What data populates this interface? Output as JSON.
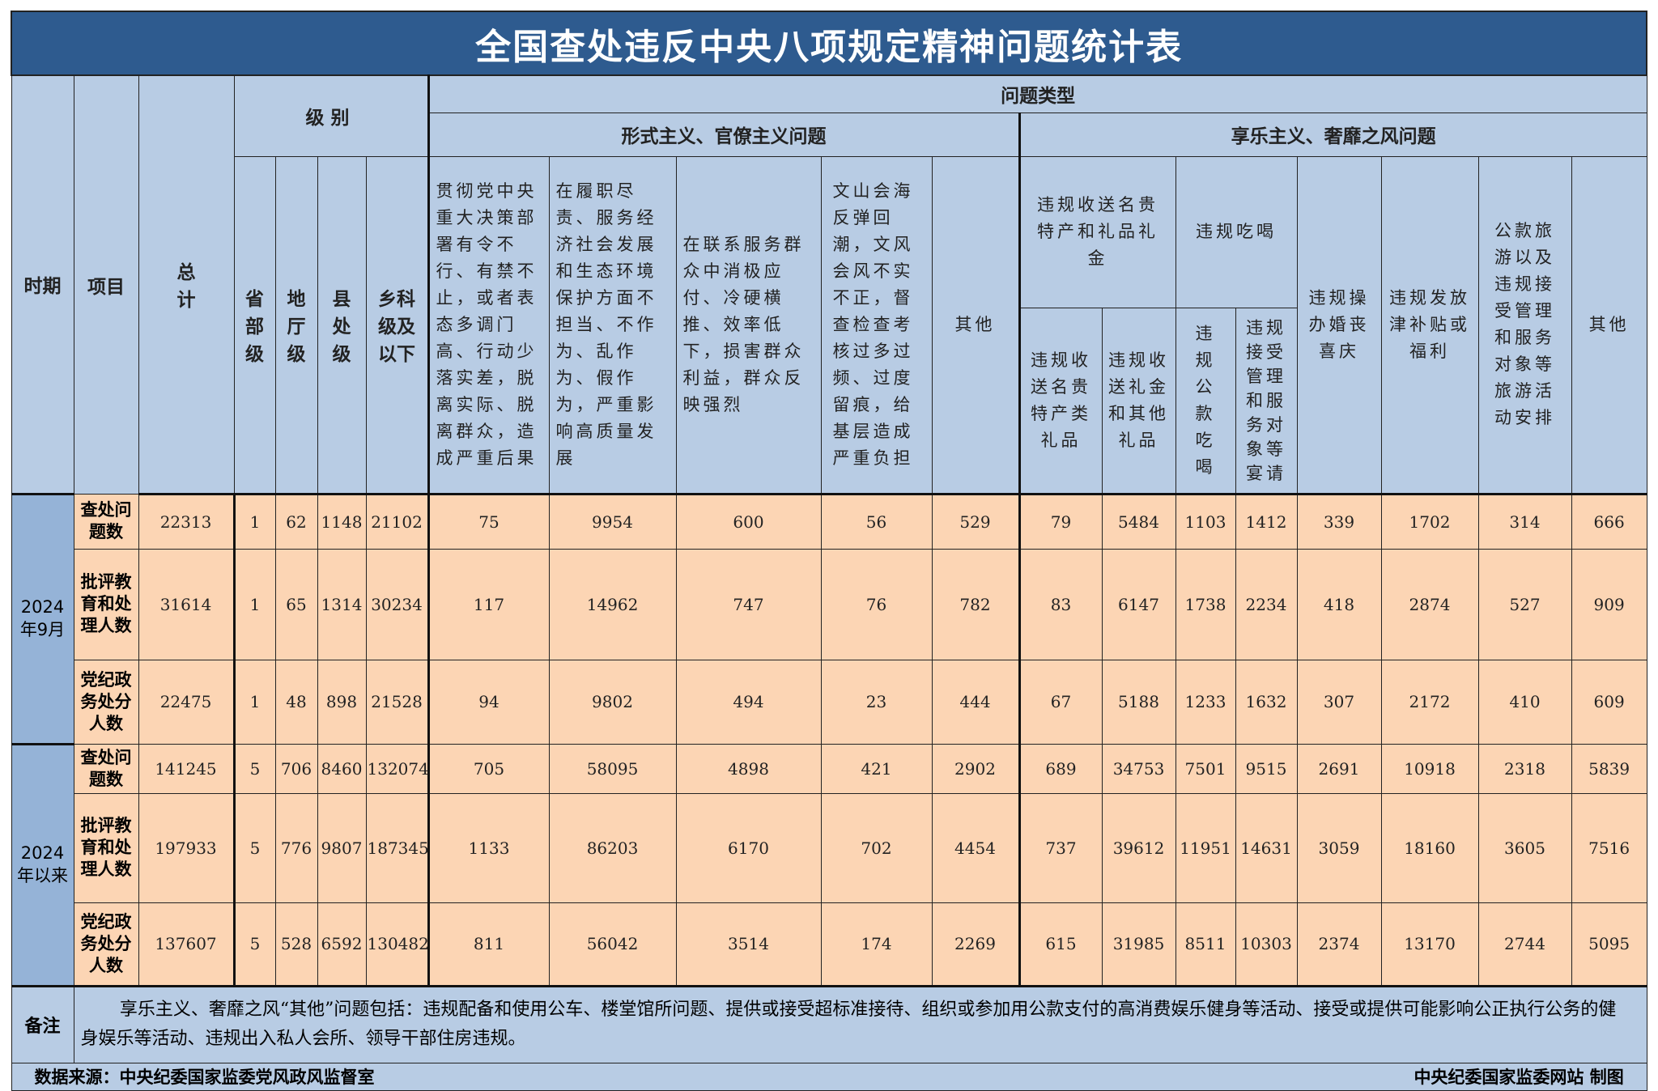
{
  "title": "全国查处违反中央八项规定精神问题统计表",
  "headers": {
    "period": "时期",
    "item": "项目",
    "total": "总计",
    "level": "级别",
    "problem_type": "问题类型",
    "group_formalism": "形式主义、官僚主义问题",
    "group_hedonism": "享乐主义、奢靡之风问题",
    "levels": [
      "省部级",
      "地厅级",
      "县处级",
      "乡科级及以下"
    ],
    "formalism": [
      "贯彻党中央重大决策部署有令不行、有禁不止，或者表态多调门高、行动少落实差，脱离实际、脱离群众，造成严重后果",
      "在履职尽责、服务经济社会发展和生态环境保护方面不担当、不作为、乱作为、假作为，严重影响高质量发展",
      "在联系服务群众中消极应付、冷硬横推、效率低下，损害群众利益，群众反映强烈",
      "文山会海反弹回潮，文风会风不实不正，督查检查考核过多过频、过度留痕，给基层造成严重负担",
      "其他"
    ],
    "gifts": "违规收送名贵特产和礼品礼金",
    "gifts_sub": [
      "违规收送名贵特产类礼品",
      "违规收送礼金和其他礼品"
    ],
    "dining": "违规吃喝",
    "dining_sub": [
      "违规公款吃喝",
      "违规接受管理和服务对象等宴请"
    ],
    "weddings": "违规操办婚丧喜庆",
    "subsidies": "违规发放津补贴或福利",
    "travel": "公款旅游以及违规接受管理和服务对象等旅游活动安排",
    "other": "其他"
  },
  "periods": [
    {
      "label": "2024年9月",
      "rows": [
        {
          "item": "查处问题数",
          "values": [
            "22313",
            "1",
            "62",
            "1148",
            "21102",
            "75",
            "9954",
            "600",
            "56",
            "529",
            "79",
            "5484",
            "1103",
            "1412",
            "339",
            "1702",
            "314",
            "666"
          ]
        },
        {
          "item": "批评教育和处理人数",
          "values": [
            "31614",
            "1",
            "65",
            "1314",
            "30234",
            "117",
            "14962",
            "747",
            "76",
            "782",
            "83",
            "6147",
            "1738",
            "2234",
            "418",
            "2874",
            "527",
            "909"
          ]
        },
        {
          "item": "党纪政务处分人数",
          "values": [
            "22475",
            "1",
            "48",
            "898",
            "21528",
            "94",
            "9802",
            "494",
            "23",
            "444",
            "67",
            "5188",
            "1233",
            "1632",
            "307",
            "2172",
            "410",
            "609"
          ]
        }
      ]
    },
    {
      "label": "2024年以来",
      "rows": [
        {
          "item": "查处问题数",
          "values": [
            "141245",
            "5",
            "706",
            "8460",
            "132074",
            "705",
            "58095",
            "4898",
            "421",
            "2902",
            "689",
            "34753",
            "7501",
            "9515",
            "2691",
            "10918",
            "2318",
            "5839"
          ]
        },
        {
          "item": "批评教育和处理人数",
          "values": [
            "197933",
            "5",
            "776",
            "9807",
            "187345",
            "1133",
            "86203",
            "6170",
            "702",
            "4454",
            "737",
            "39612",
            "11951",
            "14631",
            "3059",
            "18160",
            "3605",
            "7516"
          ]
        },
        {
          "item": "党纪政务处分人数",
          "values": [
            "137607",
            "5",
            "528",
            "6592",
            "130482",
            "811",
            "56042",
            "3514",
            "174",
            "2269",
            "615",
            "31985",
            "8511",
            "10303",
            "2374",
            "13170",
            "2744",
            "5095"
          ]
        }
      ]
    }
  ],
  "note": {
    "label": "备注",
    "text": "享乐主义、奢靡之风“其他”问题包括：违规配备和使用公车、楼堂馆所问题、提供或接受超标准接待、组织或参加用公款支付的高消费娱乐健身等活动、接受或提供可能影响公正执行公务的健身娱乐等活动、违规出入私人会所、领导干部住房违规。"
  },
  "footer": {
    "source": "数据来源：中央纪委国家监委党风政风监督室",
    "credit": "中央纪委国家监委网站 制图"
  },
  "colors": {
    "title_bg": "#2e5b8f",
    "header_bg": "#b8cce4",
    "period_bg": "#95b3d7",
    "data_bg": "#fcd5b4"
  }
}
